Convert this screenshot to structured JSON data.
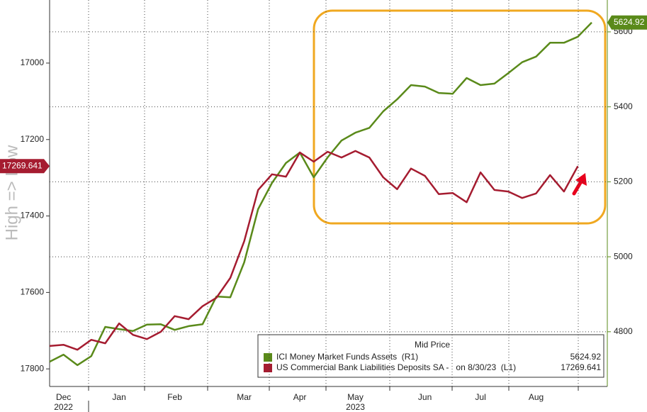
{
  "chart_data": {
    "type": "line",
    "yaxis_label": "High => Low",
    "legend_title": "Mid Price",
    "categories": [
      null,
      "Dec",
      null,
      null,
      null,
      "Jan",
      null,
      null,
      null,
      "Feb",
      null,
      null,
      null,
      null,
      "Mar",
      null,
      null,
      null,
      "Apr",
      null,
      null,
      null,
      "May",
      null,
      null,
      null,
      null,
      "Jun",
      null,
      null,
      null,
      "Jul",
      null,
      null,
      null,
      "Aug",
      null,
      null,
      null,
      null
    ],
    "years": [
      {
        "index": 1,
        "label": "2022"
      },
      {
        "index": 22,
        "label": "2023"
      }
    ],
    "series": [
      {
        "name": "ICI Money Market Funds Assets  (R1)",
        "color": "#5a8a1a",
        "axis": "y2",
        "values": [
          4720,
          4739,
          4711,
          4735,
          4813,
          4807,
          4802,
          4819,
          4820,
          4805,
          4815,
          4820,
          4894,
          4892,
          4985,
          5127,
          5197,
          5250,
          5278,
          5212,
          5265,
          5310,
          5331,
          5344,
          5388,
          5420,
          5458,
          5454,
          5437,
          5435,
          5477,
          5458,
          5462,
          5490,
          5519,
          5534,
          5571,
          5571,
          5587,
          5624.92
        ],
        "last_label": "5624.92"
      },
      {
        "name": "US Commercial Bank Liabilities Deposits SA -   on 8/30/23  (L1)",
        "color": "#a51c30",
        "axis": "y",
        "values": [
          17740,
          17737,
          17750,
          17724,
          17733,
          17681,
          17711,
          17722,
          17703,
          17662,
          17670,
          17636,
          17614,
          17562,
          17466,
          17332,
          17291,
          17297,
          17234,
          17258,
          17232,
          17247,
          17230,
          17247,
          17299,
          17330,
          17276,
          17295,
          17343,
          17340,
          17364,
          17286,
          17332,
          17336,
          17353,
          17341,
          17293,
          17336,
          17269.641,
          null
        ],
        "last_label": "17269.641"
      }
    ],
    "ylim": [
      17846,
      16835
    ],
    "yticks": [
      17000,
      17200,
      17400,
      17600,
      17800
    ],
    "y2lim": [
      4654,
      5685
    ],
    "y2ticks": [
      4800,
      5000,
      5200,
      5400,
      5600
    ],
    "grid": true
  }
}
